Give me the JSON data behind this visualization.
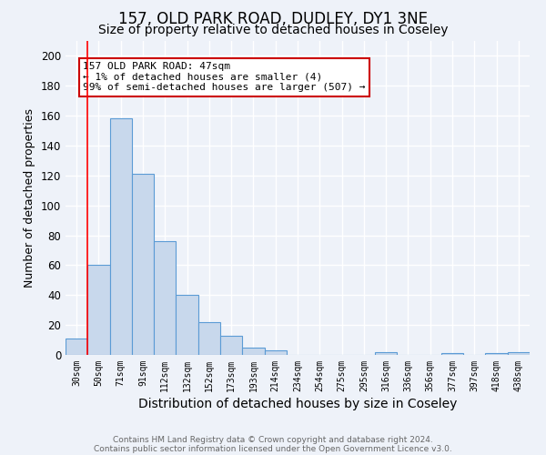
{
  "title1": "157, OLD PARK ROAD, DUDLEY, DY1 3NE",
  "title2": "Size of property relative to detached houses in Coseley",
  "xlabel": "Distribution of detached houses by size in Coseley",
  "ylabel": "Number of detached properties",
  "bar_labels": [
    "30sqm",
    "50sqm",
    "71sqm",
    "91sqm",
    "112sqm",
    "132sqm",
    "152sqm",
    "173sqm",
    "193sqm",
    "214sqm",
    "234sqm",
    "254sqm",
    "275sqm",
    "295sqm",
    "316sqm",
    "336sqm",
    "356sqm",
    "377sqm",
    "397sqm",
    "418sqm",
    "438sqm"
  ],
  "bar_heights": [
    11,
    60,
    158,
    121,
    76,
    40,
    22,
    13,
    5,
    3,
    0,
    0,
    0,
    0,
    2,
    0,
    0,
    1,
    0,
    1,
    2
  ],
  "bar_color": "#c8d8ec",
  "bar_edge_color": "#5b9bd5",
  "ylim": [
    0,
    210
  ],
  "yticks": [
    0,
    20,
    40,
    60,
    80,
    100,
    120,
    140,
    160,
    180,
    200
  ],
  "red_line_x": 0.5,
  "annotation_text": "157 OLD PARK ROAD: 47sqm\n← 1% of detached houses are smaller (4)\n99% of semi-detached houses are larger (507) →",
  "annotation_box_color": "#ffffff",
  "annotation_box_edge": "#cc0000",
  "footer1": "Contains HM Land Registry data © Crown copyright and database right 2024.",
  "footer2": "Contains public sector information licensed under the Open Government Licence v3.0.",
  "background_color": "#eef2f9",
  "plot_bg_color": "#eef2f9",
  "grid_color": "#ffffff",
  "title1_fontsize": 12,
  "title2_fontsize": 10,
  "xlabel_fontsize": 10,
  "ylabel_fontsize": 9,
  "annotation_fontsize": 8
}
